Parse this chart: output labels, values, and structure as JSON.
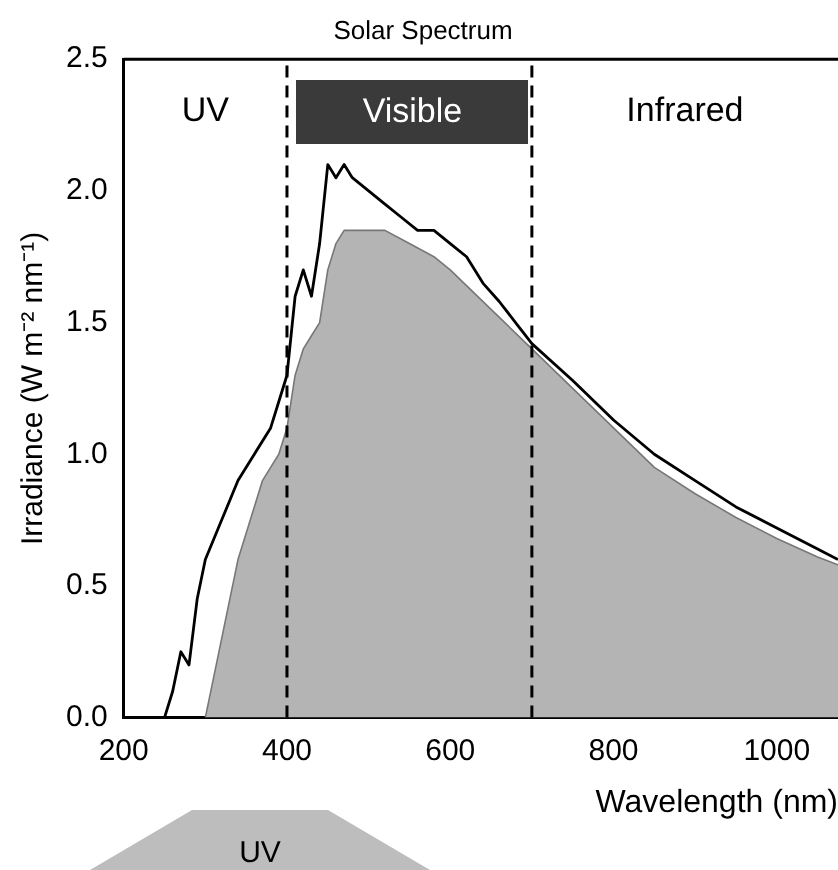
{
  "chart_data": {
    "type": "line",
    "title": "Solar Spectrum",
    "xlabel": "Wavelength (nm)",
    "ylabel": "Irradiance (W m⁻² nm⁻¹)",
    "annotations": [
      "UV",
      "Visible",
      "Infrared",
      "UV"
    ],
    "xlim": [
      200,
      1075
    ],
    "xticks": [
      200,
      400,
      600,
      800,
      1000
    ],
    "ylim": [
      0,
      2.5
    ],
    "yticks": [
      {
        "value": 0,
        "label": "0.0"
      },
      0.5,
      {
        "value": 1,
        "label": "1.0"
      },
      1.5,
      {
        "value": 2,
        "label": "2.0"
      },
      2.5
    ],
    "grid": false,
    "legend": false,
    "marker": "none",
    "ref_lines": [
      {
        "axis": "x",
        "value": 400,
        "line_style": "dashed",
        "color": "#000000"
      },
      {
        "axis": "x",
        "value": 700,
        "line_style": "dashed",
        "color": "#000000"
      }
    ],
    "series": [
      {
        "type": "area",
        "color": "#b4b4b4",
        "x": [
          300,
          310,
          320,
          330,
          340,
          350,
          360,
          370,
          380,
          390,
          400,
          410,
          420,
          430,
          440,
          450,
          460,
          470,
          480,
          500,
          520,
          550,
          580,
          600,
          650,
          700,
          750,
          800,
          850,
          900,
          950,
          1000,
          1050,
          1075
        ],
        "values": [
          0,
          0.15,
          0.3,
          0.45,
          0.6,
          0.7,
          0.8,
          0.9,
          0.95,
          1.0,
          1.1,
          1.3,
          1.4,
          1.45,
          1.5,
          1.7,
          1.8,
          1.85,
          1.85,
          1.85,
          1.85,
          1.8,
          1.75,
          1.7,
          1.55,
          1.4,
          1.25,
          1.1,
          0.95,
          0.85,
          0.76,
          0.68,
          0.61,
          0.58
        ]
      },
      {
        "type": "line",
        "color": "#000000",
        "x": [
          250,
          260,
          270,
          280,
          290,
          300,
          320,
          340,
          360,
          380,
          400,
          410,
          420,
          430,
          440,
          450,
          460,
          470,
          480,
          500,
          520,
          540,
          560,
          580,
          600,
          620,
          640,
          660,
          680,
          700,
          750,
          800,
          850,
          900,
          950,
          1000,
          1050,
          1075
        ],
        "values": [
          0,
          0.1,
          0.25,
          0.2,
          0.45,
          0.6,
          0.75,
          0.9,
          1.0,
          1.1,
          1.3,
          1.6,
          1.7,
          1.6,
          1.8,
          2.1,
          2.05,
          2.1,
          2.05,
          2.0,
          1.95,
          1.9,
          1.85,
          1.85,
          1.8,
          1.75,
          1.65,
          1.58,
          1.5,
          1.42,
          1.28,
          1.13,
          1.0,
          0.9,
          0.8,
          0.72,
          0.64,
          0.6
        ]
      }
    ]
  }
}
